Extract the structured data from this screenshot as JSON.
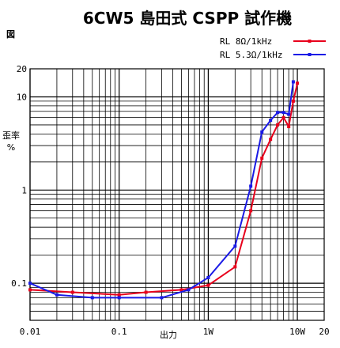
{
  "chart_data": {
    "type": "line",
    "title": "6CW5 島田式 CSPP 試作機",
    "corner_label": "図",
    "xlabel": "出力",
    "ylabel_lines": [
      "歪率",
      "%"
    ],
    "x_scale": "log",
    "y_scale": "log",
    "xlim": [
      0.01,
      20
    ],
    "ylim": [
      0.04,
      20
    ],
    "grid": true,
    "legend_position": "top-right",
    "x_tick_labels": [
      {
        "value": 0.01,
        "label": "0.01"
      },
      {
        "value": 0.1,
        "label": "0.1"
      },
      {
        "value": 1,
        "label": "1W"
      },
      {
        "value": 10,
        "label": "10W"
      },
      {
        "value": 20,
        "label": "20"
      }
    ],
    "y_tick_labels": [
      {
        "value": 0.1,
        "label": "0.1"
      },
      {
        "value": 1,
        "label": "1"
      },
      {
        "value": 10,
        "label": "10"
      },
      {
        "value": 20,
        "label": "20"
      }
    ],
    "series": [
      {
        "name": "RL 8Ω/1kHz",
        "color": "#e8001c",
        "x": [
          0.01,
          0.03,
          0.1,
          0.2,
          0.5,
          1,
          2,
          3,
          4,
          5,
          6,
          7,
          8,
          9,
          10
        ],
        "y": [
          0.085,
          0.08,
          0.075,
          0.08,
          0.085,
          0.095,
          0.15,
          0.6,
          2.2,
          3.5,
          5,
          6,
          4.8,
          9,
          14
        ]
      },
      {
        "name": "RL 5.3Ω/1kHz",
        "color": "#1a1ae6",
        "x": [
          0.01,
          0.02,
          0.05,
          0.1,
          0.3,
          0.6,
          1,
          2,
          3,
          4,
          5,
          6,
          7,
          8,
          9
        ],
        "y": [
          0.1,
          0.075,
          0.07,
          0.07,
          0.07,
          0.085,
          0.115,
          0.25,
          1.1,
          4.2,
          5.6,
          6.8,
          6.8,
          6.5,
          14.5
        ]
      }
    ]
  }
}
